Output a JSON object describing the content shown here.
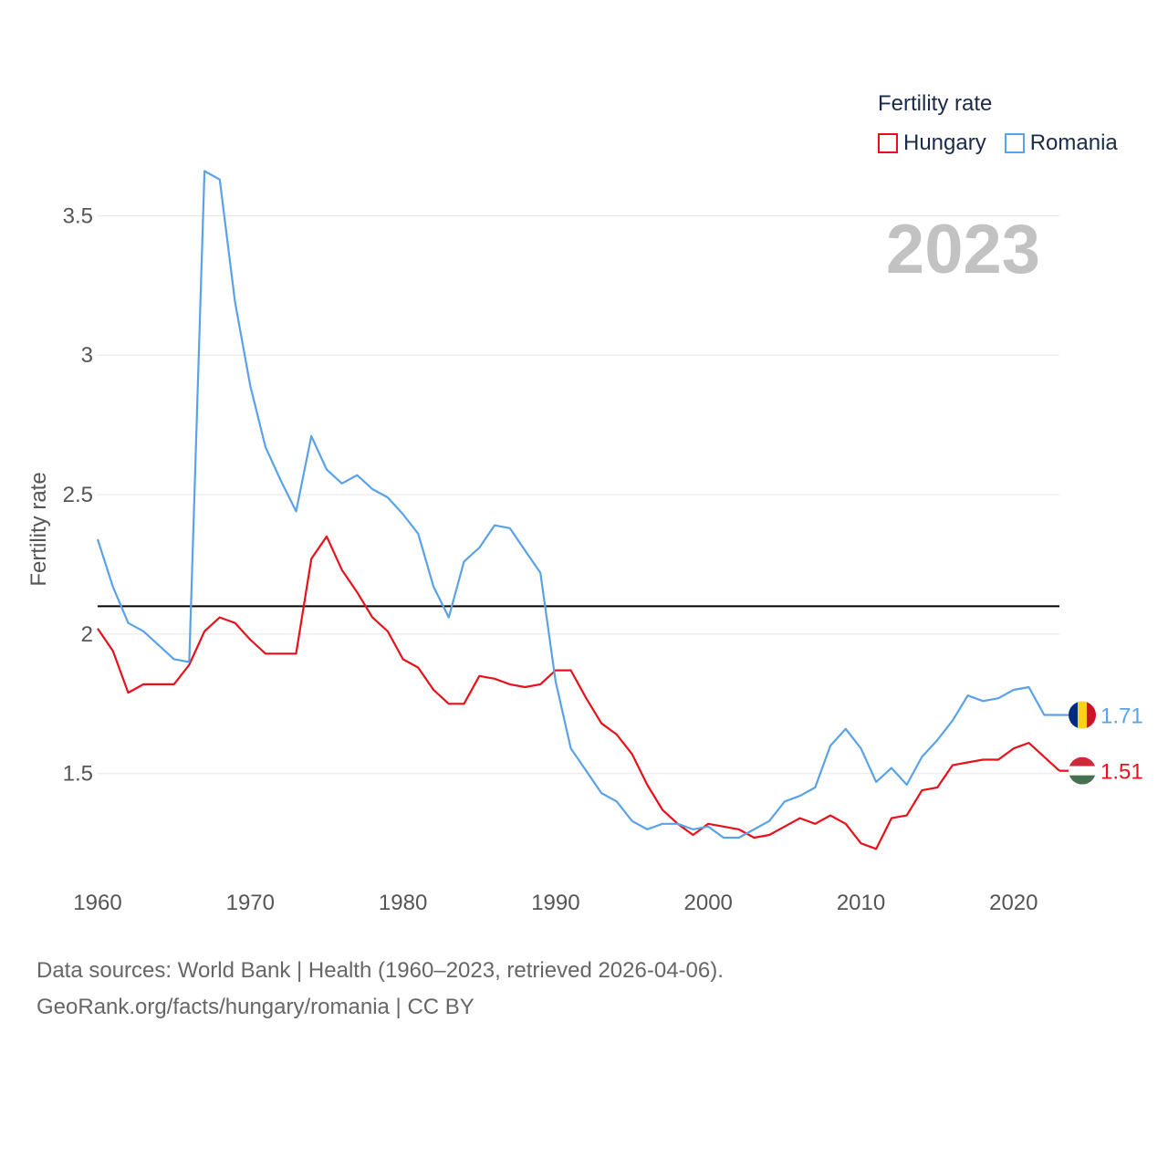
{
  "legend": {
    "title": "Fertility rate",
    "items": [
      {
        "name": "Hungary",
        "color": "#e8101a"
      },
      {
        "name": "Romania",
        "color": "#5aa2e8"
      }
    ]
  },
  "year_label": "2023",
  "source": {
    "line1": "Data sources: World Bank | Health (1960–2023, retrieved 2026-04-06).",
    "line2": "GeoRank.org/facts/hungary/romania | CC BY"
  },
  "chart_data": {
    "type": "line",
    "title": "",
    "xlabel": "",
    "ylabel": "Fertility rate",
    "xlim": [
      1960,
      2023
    ],
    "ylim": [
      1.1,
      3.75
    ],
    "x_ticks": [
      1960,
      1970,
      1980,
      1990,
      2000,
      2010,
      2020
    ],
    "y_ticks": [
      1.5,
      2,
      2.5,
      3,
      3.5
    ],
    "y_tick_labels": [
      "1.5",
      "2",
      "2.5",
      "3",
      "3.5"
    ],
    "reference_line": {
      "y": 2.1,
      "color": "#000000"
    },
    "x": [
      1960,
      1961,
      1962,
      1963,
      1964,
      1965,
      1966,
      1967,
      1968,
      1969,
      1970,
      1971,
      1972,
      1973,
      1974,
      1975,
      1976,
      1977,
      1978,
      1979,
      1980,
      1981,
      1982,
      1983,
      1984,
      1985,
      1986,
      1987,
      1988,
      1989,
      1990,
      1991,
      1992,
      1993,
      1994,
      1995,
      1996,
      1997,
      1998,
      1999,
      2000,
      2001,
      2002,
      2003,
      2004,
      2005,
      2006,
      2007,
      2008,
      2009,
      2010,
      2011,
      2012,
      2013,
      2014,
      2015,
      2016,
      2017,
      2018,
      2019,
      2020,
      2021,
      2022,
      2023
    ],
    "series": [
      {
        "name": "Hungary",
        "color": "#e8101a",
        "end_label": "1.51",
        "values": [
          2.02,
          1.94,
          1.79,
          1.82,
          1.82,
          1.82,
          1.89,
          2.01,
          2.06,
          2.04,
          1.98,
          1.93,
          1.93,
          1.93,
          2.27,
          2.35,
          2.23,
          2.15,
          2.06,
          2.01,
          1.91,
          1.88,
          1.8,
          1.75,
          1.75,
          1.85,
          1.84,
          1.82,
          1.81,
          1.82,
          1.87,
          1.87,
          1.77,
          1.68,
          1.64,
          1.57,
          1.46,
          1.37,
          1.32,
          1.28,
          1.32,
          1.31,
          1.3,
          1.27,
          1.28,
          1.31,
          1.34,
          1.32,
          1.35,
          1.32,
          1.25,
          1.23,
          1.34,
          1.35,
          1.44,
          1.45,
          1.53,
          1.54,
          1.55,
          1.55,
          1.59,
          1.61,
          1.56,
          1.51
        ]
      },
      {
        "name": "Romania",
        "color": "#5aa2e8",
        "end_label": "1.71",
        "values": [
          2.34,
          2.17,
          2.04,
          2.01,
          1.96,
          1.91,
          1.9,
          3.66,
          3.63,
          3.19,
          2.89,
          2.67,
          2.55,
          2.44,
          2.71,
          2.59,
          2.54,
          2.57,
          2.52,
          2.49,
          2.43,
          2.36,
          2.17,
          2.06,
          2.26,
          2.31,
          2.39,
          2.38,
          2.3,
          2.22,
          1.83,
          1.59,
          1.51,
          1.43,
          1.4,
          1.33,
          1.3,
          1.32,
          1.32,
          1.3,
          1.31,
          1.27,
          1.27,
          1.3,
          1.33,
          1.4,
          1.42,
          1.45,
          1.6,
          1.66,
          1.59,
          1.47,
          1.52,
          1.46,
          1.56,
          1.62,
          1.69,
          1.78,
          1.76,
          1.77,
          1.8,
          1.81,
          1.71,
          1.71
        ]
      }
    ]
  }
}
